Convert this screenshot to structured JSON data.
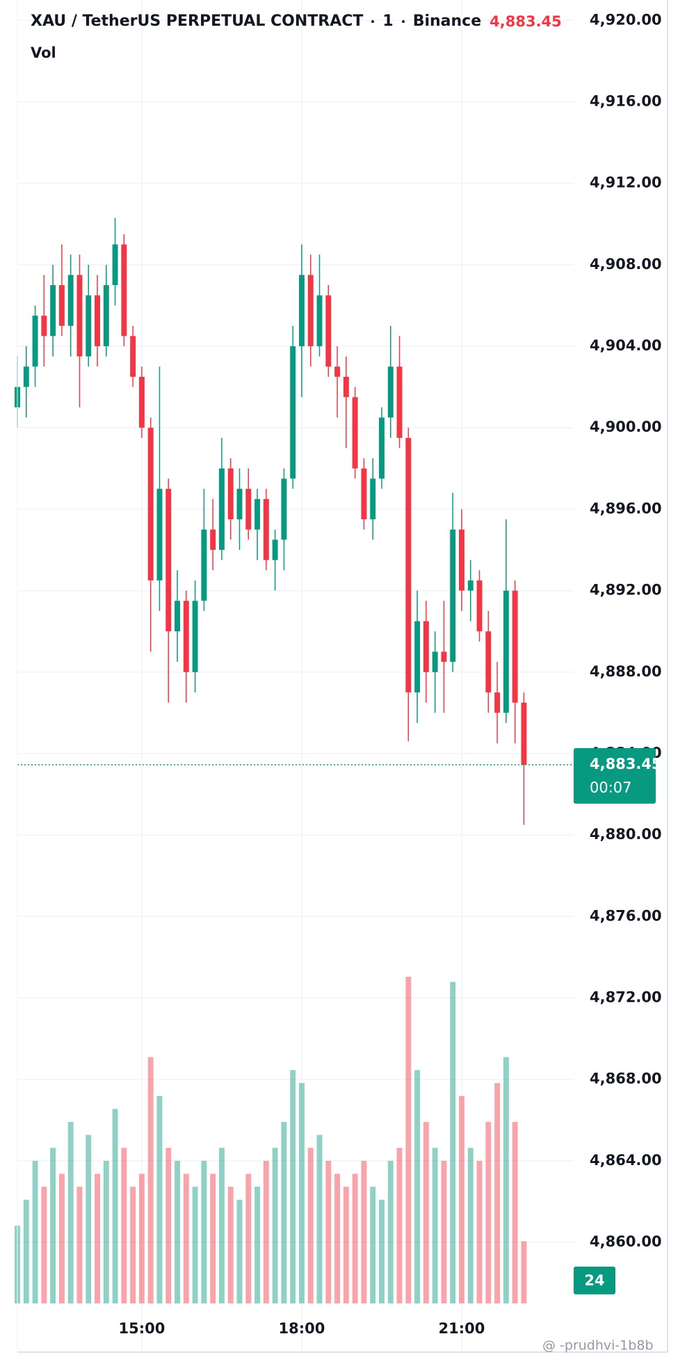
{
  "chart_data": {
    "type": "candlestick",
    "title": "XAU / TetherUS PERPETUAL CONTRACT",
    "interval": "1",
    "exchange": "Binance",
    "volume_label": "Vol",
    "countdown": "00:07",
    "watermark": "@ -prudhvi-1b8b",
    "up_color": "#089981",
    "down_color": "#f23645",
    "grid": true,
    "last_price": {
      "value": 4883.45,
      "label": "4,883.45"
    },
    "x": [
      760,
      770,
      780,
      790,
      800,
      810,
      820,
      830,
      840,
      850,
      860,
      870,
      880,
      890,
      900,
      910,
      920,
      930,
      940,
      950,
      960,
      970,
      980,
      990,
      1000,
      1010,
      1020,
      1030,
      1040,
      1050,
      1060,
      1070,
      1080,
      1090,
      1100,
      1110,
      1120,
      1130,
      1140,
      1150,
      1160,
      1170,
      1180,
      1190,
      1200,
      1210,
      1220,
      1230,
      1240,
      1250,
      1260,
      1270,
      1280,
      1290,
      1300,
      1310,
      1320,
      1330
    ],
    "open": [
      4901.0,
      4902.0,
      4903.0,
      4905.5,
      4904.5,
      4907.0,
      4905.0,
      4907.5,
      4903.5,
      4906.5,
      4904.0,
      4907.0,
      4909.0,
      4904.5,
      4902.5,
      4900.0,
      4892.5,
      4897.0,
      4890.0,
      4891.5,
      4888.0,
      4891.5,
      4895.0,
      4894.0,
      4898.0,
      4895.5,
      4897.0,
      4895.0,
      4896.5,
      4893.5,
      4894.5,
      4897.5,
      4904.0,
      4907.5,
      4904.0,
      4906.5,
      4903.0,
      4902.5,
      4901.5,
      4898.0,
      4895.5,
      4897.5,
      4900.5,
      4903.0,
      4899.5,
      4887.0,
      4890.5,
      4888.0,
      4889.0,
      4888.5,
      4895.0,
      4892.0,
      4892.5,
      4890.0,
      4887.0,
      4886.0,
      4892.0,
      4886.5
    ],
    "high": [
      4903.5,
      4904.0,
      4906.0,
      4907.5,
      4908.0,
      4909.0,
      4908.5,
      4908.5,
      4908.0,
      4907.5,
      4908.0,
      4910.3,
      4909.5,
      4905.0,
      4903.0,
      4900.5,
      4903.0,
      4897.5,
      4893.0,
      4892.0,
      4892.5,
      4897.0,
      4896.5,
      4899.5,
      4898.5,
      4898.0,
      4898.0,
      4897.0,
      4897.0,
      4895.0,
      4898.0,
      4905.0,
      4909.0,
      4908.5,
      4908.5,
      4907.0,
      4904.0,
      4903.5,
      4902.0,
      4898.5,
      4898.5,
      4901.0,
      4905.0,
      4904.5,
      4900.0,
      4892.0,
      4891.5,
      4890.0,
      4891.5,
      4896.8,
      4896.0,
      4893.5,
      4893.0,
      4891.0,
      4888.5,
      4895.5,
      4892.5,
      4887.0
    ],
    "low": [
      4900.0,
      4900.5,
      4902.0,
      4903.0,
      4903.5,
      4904.5,
      4903.5,
      4901.0,
      4903.0,
      4903.0,
      4903.5,
      4906.0,
      4904.0,
      4902.0,
      4899.5,
      4889.0,
      4891.0,
      4886.5,
      4888.5,
      4886.5,
      4887.0,
      4891.0,
      4893.0,
      4893.5,
      4894.5,
      4894.0,
      4894.5,
      4893.5,
      4893.0,
      4892.0,
      4893.0,
      4897.0,
      4901.5,
      4903.0,
      4903.5,
      4902.5,
      4900.5,
      4899.0,
      4897.5,
      4895.0,
      4894.5,
      4897.0,
      4899.5,
      4899.0,
      4884.6,
      4885.5,
      4886.5,
      4886.0,
      4886.0,
      4888.0,
      4891.0,
      4890.5,
      4889.5,
      4886.0,
      4884.5,
      4885.5,
      4884.5,
      4880.5
    ],
    "close": [
      4902.0,
      4903.0,
      4905.5,
      4904.5,
      4907.0,
      4905.0,
      4907.5,
      4903.5,
      4906.5,
      4904.0,
      4907.0,
      4909.0,
      4904.5,
      4902.5,
      4900.0,
      4892.5,
      4897.0,
      4890.0,
      4891.5,
      4888.0,
      4891.5,
      4895.0,
      4894.0,
      4898.0,
      4895.5,
      4897.0,
      4895.0,
      4896.5,
      4893.5,
      4894.5,
      4897.5,
      4904.0,
      4907.5,
      4904.0,
      4906.5,
      4903.0,
      4902.5,
      4901.5,
      4898.0,
      4895.5,
      4897.5,
      4900.5,
      4903.0,
      4899.5,
      4887.0,
      4890.5,
      4888.0,
      4889.0,
      4888.5,
      4895.0,
      4892.0,
      4892.5,
      4890.0,
      4887.0,
      4886.0,
      4892.0,
      4886.5,
      4883.45
    ],
    "volume": [
      30,
      40,
      55,
      45,
      60,
      50,
      70,
      45,
      65,
      50,
      55,
      75,
      60,
      45,
      50,
      95,
      80,
      60,
      55,
      50,
      45,
      55,
      50,
      60,
      45,
      40,
      50,
      45,
      55,
      60,
      70,
      90,
      85,
      60,
      65,
      55,
      50,
      45,
      50,
      55,
      45,
      40,
      55,
      60,
      126,
      90,
      70,
      60,
      55,
      124,
      80,
      60,
      55,
      70,
      85,
      95,
      70,
      24
    ],
    "xlim": [
      760,
      1386
    ],
    "ylim": [
      4857,
      4921
    ],
    "xticks": [
      {
        "value": 900,
        "label": "15:00"
      },
      {
        "value": 1080,
        "label": "18:00"
      },
      {
        "value": 1260,
        "label": "21:00"
      }
    ],
    "yticks": [
      {
        "value": 4860,
        "label": "4,860.00"
      },
      {
        "value": 4864,
        "label": "4,864.00"
      },
      {
        "value": 4868,
        "label": "4,868.00"
      },
      {
        "value": 4872,
        "label": "4,872.00"
      },
      {
        "value": 4876,
        "label": "4,876.00"
      },
      {
        "value": 4880,
        "label": "4,880.00"
      },
      {
        "value": 4884,
        "label": "4,884.00"
      },
      {
        "value": 4888,
        "label": "4,888.00"
      },
      {
        "value": 4892,
        "label": "4,892.00"
      },
      {
        "value": 4896,
        "label": "4,896.00"
      },
      {
        "value": 4900,
        "label": "4,900.00"
      },
      {
        "value": 4904,
        "label": "4,904.00"
      },
      {
        "value": 4908,
        "label": "4,908.00"
      },
      {
        "value": 4912,
        "label": "4,912.00"
      },
      {
        "value": 4916,
        "label": "4,916.00"
      },
      {
        "value": 4920,
        "label": "4,920.00"
      }
    ]
  }
}
